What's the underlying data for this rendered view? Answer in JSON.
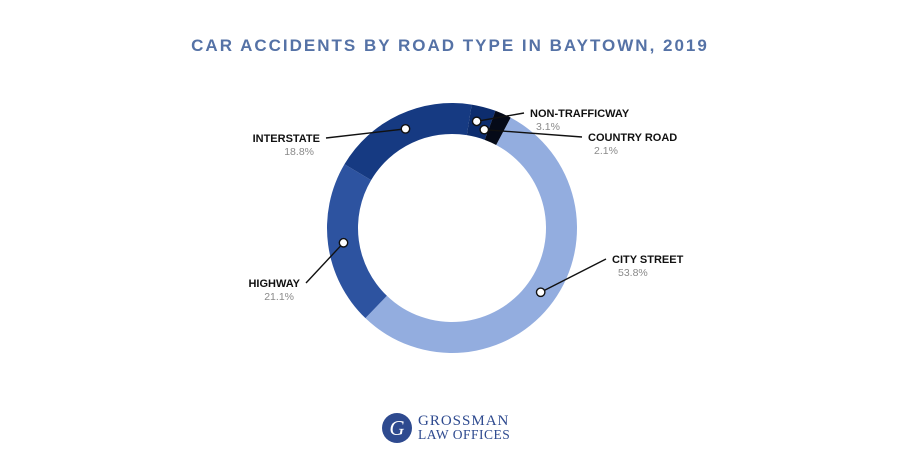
{
  "chart_data": {
    "type": "pie",
    "title": "CAR ACCIDENTS BY ROAD TYPE IN BAYTOWN, 2019",
    "donut": true,
    "slices": [
      {
        "label": "CITY STREET",
        "value": 53.8,
        "display": "53.8%",
        "color": "#93addf",
        "side": "right"
      },
      {
        "label": "HIGHWAY",
        "value": 21.1,
        "display": "21.1%",
        "color": "#2d53a0",
        "side": "left"
      },
      {
        "label": "INTERSTATE",
        "value": 18.8,
        "display": "18.8%",
        "color": "#163a82",
        "side": "left"
      },
      {
        "label": "NON-TRAFFICWAY",
        "value": 3.1,
        "display": "3.1%",
        "color": "#0d2d6e",
        "side": "right"
      },
      {
        "label": "COUNTRY ROAD",
        "value": 2.1,
        "display": "2.1%",
        "color": "#050a18",
        "side": "right"
      }
    ]
  },
  "logo": {
    "mark": "G",
    "line1": "GROSSMAN",
    "line2": "LAW OFFICES"
  }
}
